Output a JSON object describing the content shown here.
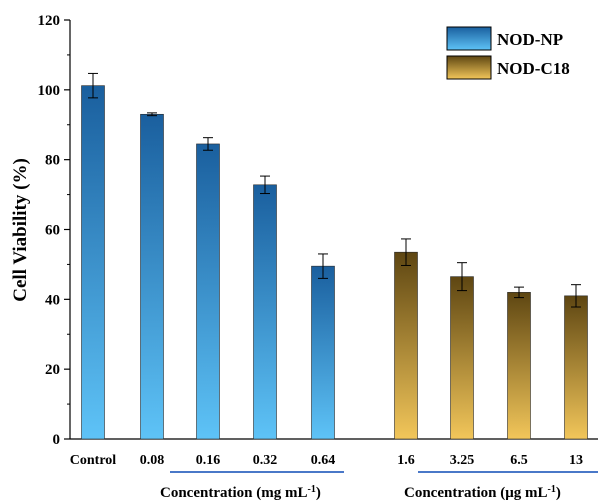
{
  "chart_data": {
    "type": "bar",
    "ylabel": "Cell Viability (%)",
    "ylim": [
      0,
      120
    ],
    "yticks": [
      0,
      20,
      40,
      60,
      80,
      100,
      120
    ],
    "grid": false,
    "legend_position": "top-right",
    "series": [
      {
        "name": "NOD-NP",
        "colors": {
          "top": "#1a5f9e",
          "bottom": "#5ec3f7"
        },
        "categories": [
          "Control",
          "0.08",
          "0.16",
          "0.32",
          "0.64"
        ],
        "values": [
          101.2,
          93.0,
          84.5,
          72.8,
          49.5
        ],
        "errors": [
          3.5,
          0.4,
          1.8,
          2.5,
          3.5
        ]
      },
      {
        "name": "NOD-C18",
        "colors": {
          "top": "#5e4612",
          "bottom": "#f2c65a"
        },
        "categories": [
          "1.6",
          "3.25",
          "6.5",
          "13"
        ],
        "values": [
          53.5,
          46.5,
          42.0,
          41.0
        ],
        "errors": [
          3.8,
          4.0,
          1.5,
          3.2
        ]
      }
    ],
    "group_labels": [
      {
        "main": "Concentration (mg mL",
        "sup": "-1",
        "close": ")"
      },
      {
        "main": "Concentration (μg mL",
        "sup": "-1",
        "close": ")"
      }
    ]
  }
}
